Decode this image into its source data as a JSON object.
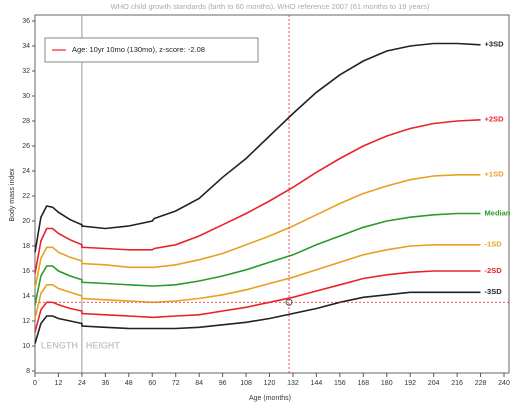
{
  "chart_data": {
    "type": "line",
    "title": "WHO child growth standards (birth to 60 months), WHO reference 2007 (61 months to 19 years)",
    "x_label": "Age (months)",
    "y_label": "Body mass index",
    "x": [
      0,
      3,
      6,
      9,
      12,
      18,
      24,
      24,
      36,
      48,
      60,
      61,
      72,
      84,
      96,
      108,
      120,
      132,
      144,
      156,
      168,
      180,
      192,
      204,
      216,
      228
    ],
    "series": [
      {
        "name": "+3SD",
        "color": "#222222",
        "values": [
          17.5,
          20.3,
          21.2,
          21.1,
          20.7,
          20.1,
          19.7,
          19.6,
          19.4,
          19.6,
          20.0,
          20.2,
          20.8,
          21.8,
          23.5,
          25.0,
          26.8,
          28.6,
          30.3,
          31.7,
          32.8,
          33.6,
          34.0,
          34.2,
          34.2,
          34.1
        ]
      },
      {
        "name": "+2SD",
        "color": "#e8242a",
        "values": [
          15.8,
          18.4,
          19.4,
          19.4,
          19.0,
          18.5,
          18.1,
          17.9,
          17.8,
          17.7,
          17.7,
          17.8,
          18.1,
          18.8,
          19.7,
          20.6,
          21.6,
          22.7,
          23.9,
          25.0,
          26.0,
          26.8,
          27.4,
          27.8,
          28.0,
          28.1
        ]
      },
      {
        "name": "+1SD",
        "color": "#e8a020",
        "values": [
          14.6,
          17.0,
          17.9,
          17.9,
          17.5,
          17.1,
          16.8,
          16.6,
          16.5,
          16.3,
          16.3,
          16.3,
          16.5,
          16.9,
          17.4,
          18.1,
          18.8,
          19.6,
          20.5,
          21.4,
          22.2,
          22.8,
          23.3,
          23.6,
          23.7,
          23.7
        ]
      },
      {
        "name": "Median",
        "color": "#2a9a2a",
        "values": [
          13.3,
          15.6,
          16.4,
          16.4,
          16.0,
          15.6,
          15.3,
          15.1,
          15.0,
          14.9,
          14.8,
          14.8,
          14.9,
          15.2,
          15.6,
          16.1,
          16.7,
          17.3,
          18.1,
          18.8,
          19.5,
          20.0,
          20.3,
          20.5,
          20.6,
          20.6
        ]
      },
      {
        "name": "-1SD",
        "color": "#e8a020",
        "values": [
          12.2,
          14.2,
          14.9,
          14.9,
          14.6,
          14.3,
          14.0,
          13.8,
          13.7,
          13.6,
          13.5,
          13.5,
          13.6,
          13.8,
          14.1,
          14.5,
          15.0,
          15.5,
          16.1,
          16.7,
          17.3,
          17.7,
          18.0,
          18.1,
          18.1,
          18.1
        ]
      },
      {
        "name": "-2SD",
        "color": "#e8242a",
        "values": [
          11.1,
          12.9,
          13.5,
          13.5,
          13.3,
          13.0,
          12.8,
          12.6,
          12.5,
          12.4,
          12.3,
          12.3,
          12.4,
          12.5,
          12.8,
          13.1,
          13.5,
          13.9,
          14.4,
          14.9,
          15.4,
          15.7,
          15.9,
          16.0,
          16.0,
          16.0
        ]
      },
      {
        "name": "-3SD",
        "color": "#222222",
        "values": [
          10.2,
          11.8,
          12.4,
          12.4,
          12.2,
          12.0,
          11.8,
          11.6,
          11.5,
          11.4,
          11.4,
          11.4,
          11.4,
          11.5,
          11.7,
          11.9,
          12.2,
          12.6,
          13.0,
          13.5,
          13.9,
          14.1,
          14.3,
          14.3,
          14.3,
          14.3
        ]
      }
    ],
    "marker": {
      "label": "Age: 10yr 10mo (130mo), z-score: -2.08",
      "x": 130,
      "y": 13.5,
      "color": "#e8242a"
    },
    "region_labels": [
      "LENGTH",
      "HEIGHT"
    ],
    "region_boundary": 24,
    "xlim": [
      0,
      240
    ],
    "ylim": [
      8,
      36
    ],
    "xticks": [
      0,
      12,
      24,
      36,
      48,
      60,
      72,
      84,
      96,
      108,
      120,
      132,
      144,
      156,
      168,
      180,
      192,
      204,
      216,
      228,
      240
    ],
    "yticks": [
      8,
      10,
      12,
      14,
      16,
      18,
      20,
      22,
      24,
      26,
      28,
      30,
      32,
      34,
      36
    ],
    "grid": false
  }
}
